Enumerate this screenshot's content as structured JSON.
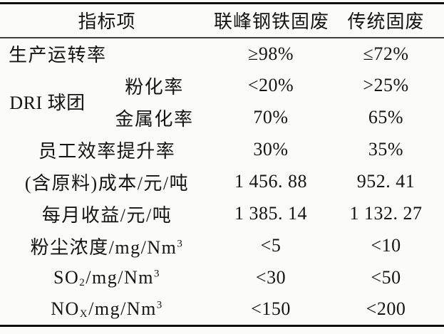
{
  "colors": {
    "background": "#fbfbfa",
    "text": "#141414",
    "rule_heavy": "#0d0d0d",
    "rule_light": "#3f3f3f"
  },
  "table": {
    "header": {
      "indicator": "指标项",
      "lianfeng": "联峰钢铁固废",
      "traditional": "传统固废"
    },
    "rows": [
      {
        "label": "生产运转率",
        "v1": "≥98%",
        "v2": "≤72%"
      },
      {
        "group": "DRI 球团",
        "label": "粉化率",
        "v1": "<20%",
        "v2": ">25%"
      },
      {
        "label": "金属化率",
        "v1": "70%",
        "v2": "65%"
      },
      {
        "label": "员工效率提升率",
        "v1": "30%",
        "v2": "35%"
      },
      {
        "label": "(含原料)成本/元/吨",
        "v1": "1 456. 88",
        "v2": "952. 41"
      },
      {
        "label": "每月收益/元/吨",
        "v1": "1 385. 14",
        "v2": "1 132. 27"
      },
      {
        "label_main": "粉尘浓度/mg/Nm",
        "label_sup": "3",
        "v1": "<5",
        "v2": "<10"
      },
      {
        "label_main": "SO",
        "label_sub": "2",
        "label_rest": "/mg/Nm",
        "label_sup": "3",
        "v1": "<30",
        "v2": "<50"
      },
      {
        "label_main": "NO",
        "label_sub": "X",
        "label_rest": "/mg/Nm",
        "label_sup": "3",
        "v1": "<150",
        "v2": "<200"
      }
    ]
  }
}
